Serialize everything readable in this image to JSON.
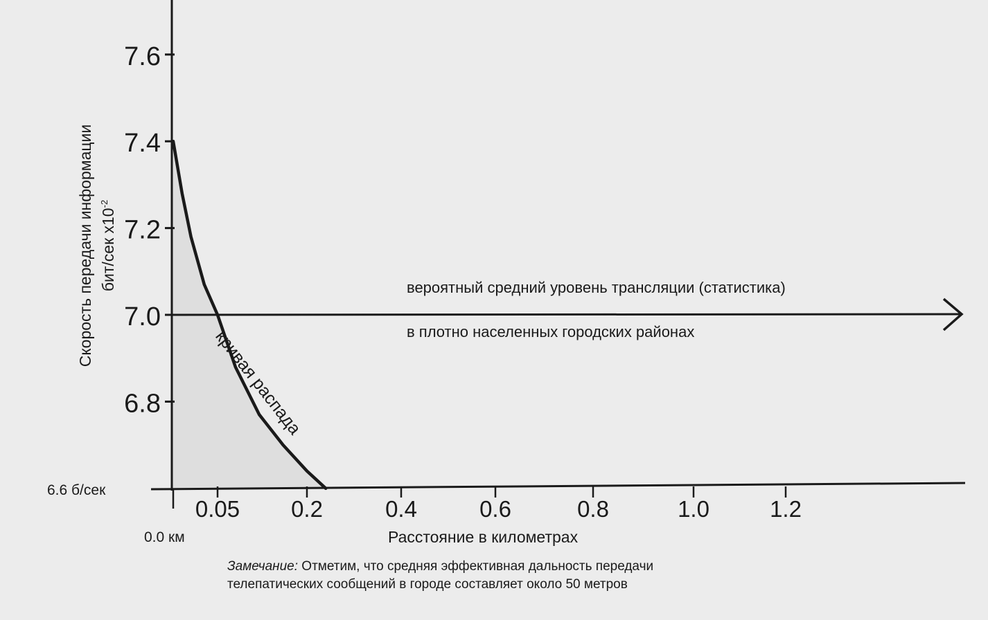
{
  "chart_data": {
    "type": "line",
    "ylabel_line1": "Скорость передачи информации",
    "ylabel_line2": "бит/сек х10",
    "ylabel_exp": "-2",
    "xlabel": "Расстояние в километрах",
    "yticks": [
      "7.6",
      "7.4",
      "7.2",
      "7.0",
      "6.8"
    ],
    "xticks": [
      "0.05",
      "0.2",
      "0.4",
      "0.6",
      "0.8",
      "1.0",
      "1.2"
    ],
    "baseline_label": "6.6 б/сек",
    "origin_label": "0.0 км",
    "series": [
      {
        "name": "кривая распада",
        "x": [
          0.0,
          0.01,
          0.02,
          0.035,
          0.05,
          0.08,
          0.12,
          0.16,
          0.2,
          0.24
        ],
        "y": [
          7.4,
          7.28,
          7.18,
          7.07,
          7.0,
          6.88,
          6.77,
          6.7,
          6.64,
          6.6
        ]
      }
    ],
    "reference_line": {
      "y": 7.0,
      "label_above": "вероятный средний уровень трансляции (статистика)",
      "label_below": "в плотно населенных городских районах"
    },
    "note_lead": "Замечание:",
    "note_rest_line1": " Отметим, что средняя эффективная дальность передачи",
    "note_line2": "телепатических сообщений в городе составляет около 50 метров"
  }
}
